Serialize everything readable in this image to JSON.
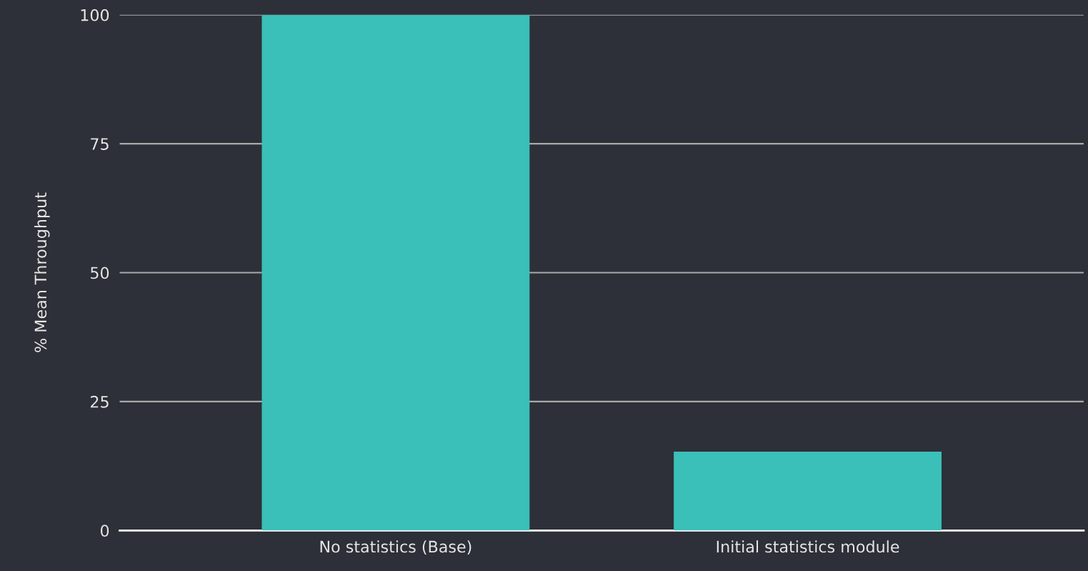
{
  "chart_data": {
    "type": "bar",
    "ylabel": "% Mean Throughput",
    "categories": [
      "No statistics (Base)",
      "Initial statistics module"
    ],
    "values": [
      100,
      15.3
    ],
    "color": "#3bbfb9",
    "ylim": [
      0,
      100
    ],
    "yticks": [
      0,
      25,
      50,
      75,
      100
    ],
    "grid": "y",
    "legend": false
  }
}
